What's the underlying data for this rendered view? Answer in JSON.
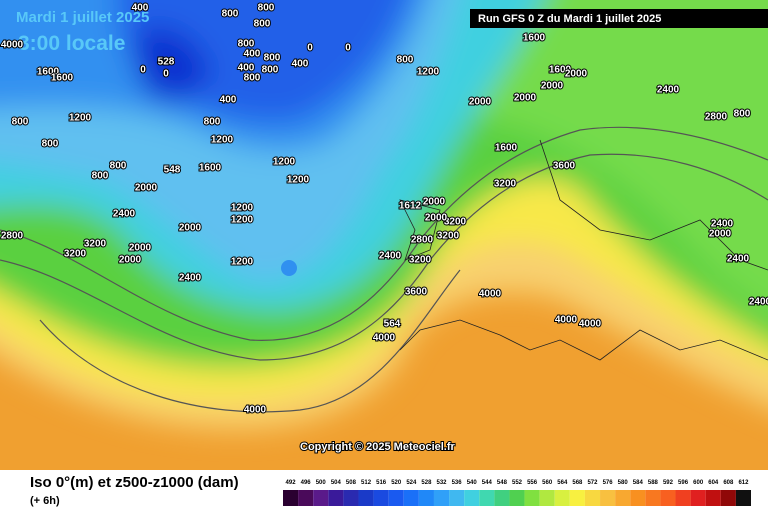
{
  "header": {
    "date": "Mardi 1 juillet 2025",
    "time": "3:00 locale",
    "run": "Run GFS 0 Z du Mardi 1 juillet 2025"
  },
  "copyright": "Copyright © 2025 Meteociel.fr",
  "footer": {
    "title": "Iso 0°(m) et z500-z1000 (dam)",
    "lead": "(+ 6h)"
  },
  "scale": {
    "values": [
      492,
      496,
      500,
      504,
      508,
      512,
      516,
      520,
      524,
      528,
      532,
      536,
      540,
      544,
      548,
      552,
      556,
      560,
      564,
      568,
      572,
      576,
      580,
      584,
      588,
      592,
      596,
      600,
      604,
      608,
      612
    ],
    "colors": [
      "#2a0030",
      "#4a0a5a",
      "#5a1a8a",
      "#3a1a9a",
      "#2a2ab0",
      "#1a3ac8",
      "#1a4ae0",
      "#1a5af0",
      "#1a70f8",
      "#2088f8",
      "#30a0f8",
      "#40b8f0",
      "#40d0e0",
      "#40d8b0",
      "#40d080",
      "#50d050",
      "#80e040",
      "#b0e840",
      "#d8f040",
      "#f8f040",
      "#f8d840",
      "#f8c040",
      "#f8a830",
      "#f89020",
      "#f87820",
      "#f86020",
      "#f04020",
      "#e02020",
      "#c01010",
      "#900808",
      "#101010"
    ]
  },
  "contours": [
    "400",
    "800",
    "800",
    "800",
    "800",
    "400",
    "800",
    "400",
    "800",
    "800",
    "400",
    "0",
    "0",
    "0",
    "528",
    "0",
    "4000",
    "1600",
    "1600",
    "800",
    "1200",
    "800",
    "400",
    "800",
    "1200",
    "1200",
    "1200",
    "1600",
    "800",
    "1200",
    "1600",
    "2000",
    "2000",
    "2000",
    "1600",
    "2000",
    "2400",
    "2800",
    "800",
    "3600",
    "3200",
    "1600",
    "3200",
    "3200",
    "2800",
    "3200",
    "2400",
    "3600",
    "4000",
    "4000",
    "4000",
    "4000",
    "4000",
    "2400",
    "2000",
    "2000",
    "3200",
    "3200",
    "2400",
    "2000",
    "1200",
    "1200",
    "1200",
    "2800",
    "2400",
    "2000",
    "2400",
    "2400",
    "2000",
    "800",
    "800",
    "2000",
    "2000",
    "1612",
    "548",
    "564"
  ]
}
